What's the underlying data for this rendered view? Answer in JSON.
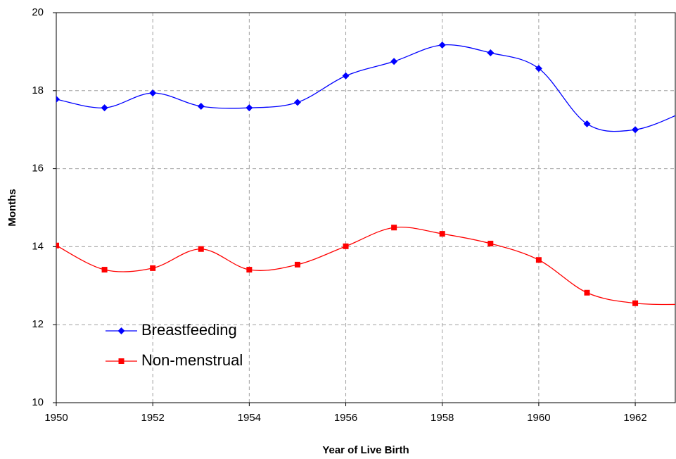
{
  "chart_data": {
    "type": "line",
    "x_label": "Year of Live Birth",
    "y_label": "Months",
    "x": [
      1950,
      1951,
      1952,
      1953,
      1954,
      1955,
      1956,
      1957,
      1958,
      1959,
      1960,
      1961,
      1962,
      1963
    ],
    "series": [
      {
        "name": "Breastfeeding",
        "color": "#0000ff",
        "marker": "diamond",
        "values": [
          17.78,
          17.56,
          17.94,
          17.6,
          17.56,
          17.7,
          18.38,
          18.75,
          19.17,
          18.97,
          18.57,
          17.15,
          17.0,
          17.45
        ]
      },
      {
        "name": "Non-menstrual",
        "color": "#ff0000",
        "marker": "square",
        "values": [
          14.03,
          13.41,
          13.45,
          13.94,
          13.41,
          13.54,
          14.01,
          14.49,
          14.33,
          14.08,
          13.66,
          12.82,
          12.55,
          12.52
        ]
      }
    ],
    "xlim": [
      1950,
      1962.83
    ],
    "xticks": [
      1950,
      1952,
      1954,
      1956,
      1958,
      1960,
      1962
    ],
    "ylim": [
      10,
      20
    ],
    "yticks": [
      10,
      12,
      14,
      16,
      18,
      20
    ],
    "grid": true,
    "legend": "lower left"
  }
}
